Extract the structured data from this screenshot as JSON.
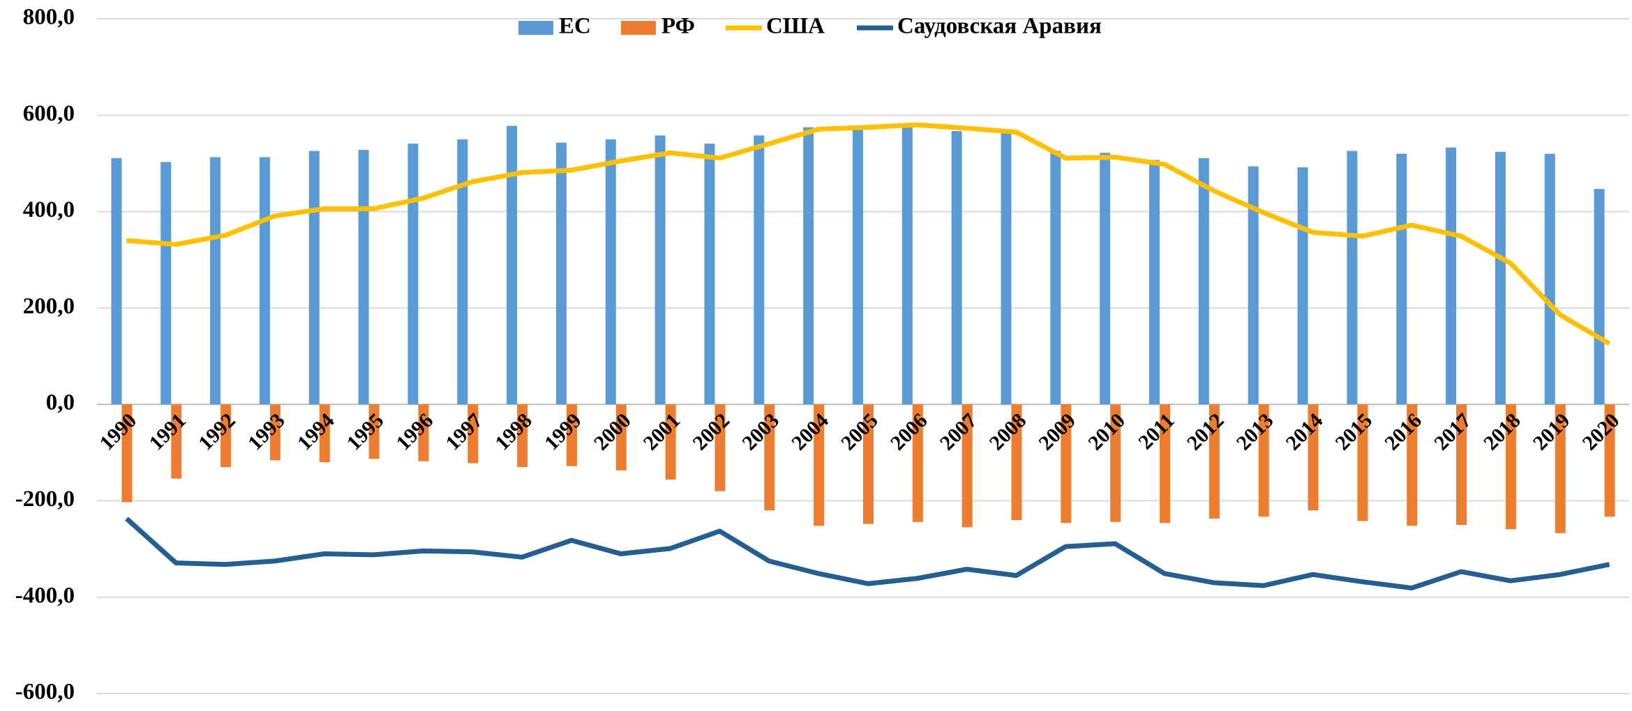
{
  "chart_data": {
    "type": "bar_line",
    "categories": [
      "1990",
      "1991",
      "1992",
      "1993",
      "1994",
      "1995",
      "1996",
      "1997",
      "1998",
      "1999",
      "2000",
      "2001",
      "2002",
      "2003",
      "2004",
      "2005",
      "2006",
      "2007",
      "2008",
      "2009",
      "2010",
      "2011",
      "2012",
      "2013",
      "2014",
      "2015",
      "2016",
      "2017",
      "2018",
      "2019",
      "2020"
    ],
    "series": [
      {
        "name": "ЕС",
        "type": "bar",
        "color": "#5b9bd5",
        "values": [
          511,
          503,
          513,
          513,
          526,
          528,
          541,
          550,
          578,
          543,
          550,
          558,
          541,
          558,
          575,
          578,
          582,
          567,
          567,
          526,
          522,
          507,
          511,
          494,
          492,
          526,
          520,
          533,
          524,
          520,
          447
        ]
      },
      {
        "name": "РФ",
        "type": "bar",
        "color": "#ed7d31",
        "values": [
          -203,
          -154,
          -130,
          -116,
          -120,
          -113,
          -118,
          -122,
          -130,
          -128,
          -137,
          -156,
          -180,
          -220,
          -252,
          -248,
          -244,
          -255,
          -240,
          -246,
          -244,
          -246,
          -237,
          -233,
          -220,
          -242,
          -252,
          -250,
          -259,
          -267,
          -233
        ]
      },
      {
        "name": "США",
        "type": "line",
        "color": "#ffc000",
        "values": [
          340,
          332,
          351,
          391,
          406,
          406,
          428,
          462,
          481,
          486,
          505,
          522,
          511,
          541,
          571,
          575,
          580,
          573,
          565,
          511,
          513,
          498,
          443,
          398,
          357,
          349,
          372,
          349,
          293,
          186,
          126
        ]
      },
      {
        "name": "Саудовская Аравия",
        "type": "line",
        "color": "#255e91",
        "values": [
          -237,
          -329,
          -332,
          -325,
          -310,
          -312,
          -304,
          -306,
          -317,
          -282,
          -310,
          -299,
          -263,
          -325,
          -351,
          -372,
          -361,
          -342,
          -355,
          -295,
          -289,
          -351,
          -370,
          -376,
          -353,
          -368,
          -381,
          -347,
          -366,
          -353,
          -332
        ]
      }
    ],
    "ylim": [
      -600,
      800
    ],
    "yticks": [
      {
        "value": -600,
        "label": "-600,0"
      },
      {
        "value": -400,
        "label": "-400,0"
      },
      {
        "value": -200,
        "label": "-200,0"
      },
      {
        "value": 0,
        "label": "0,0"
      },
      {
        "value": 200,
        "label": "200,0"
      },
      {
        "value": 400,
        "label": "400,0"
      },
      {
        "value": 600,
        "label": "600,0"
      },
      {
        "value": 800,
        "label": "800,0"
      }
    ],
    "grid": true,
    "legend": "top"
  }
}
